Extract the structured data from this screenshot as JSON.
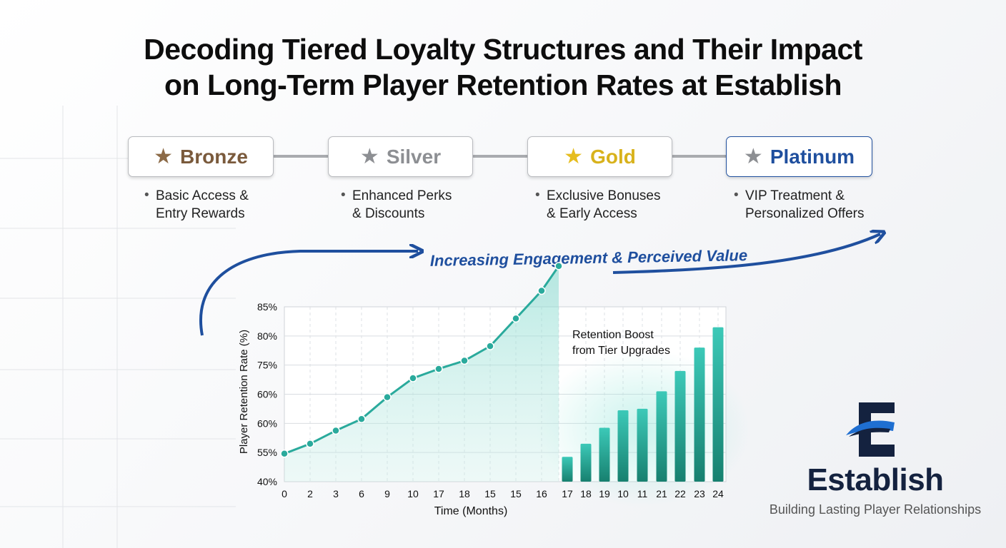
{
  "title": {
    "line1": "Decoding Tiered Loyalty Structures and Their Impact",
    "line2": "on Long-Term Player Retention Rates at Establish"
  },
  "tiers": [
    {
      "name": "Bronze",
      "desc1": "Basic Access &",
      "desc2": "Entry Rewards",
      "color": "#7a5a3c",
      "star_color": "#8c6a47",
      "border": "#b9bbbf"
    },
    {
      "name": "Silver",
      "desc1": "Enhanced Perks",
      "desc2": "& Discounts",
      "color": "#8d8f93",
      "star_color": "#8d8f93",
      "border": "#c2c4c8"
    },
    {
      "name": "Gold",
      "desc1": "Exclusive Bonuses",
      "desc2": "& Early Access",
      "color": "#d8b21c",
      "star_color": "#e6bd1e",
      "border": "#b9bbbf"
    },
    {
      "name": "Platinum",
      "desc1": "VIP Treatment &",
      "desc2": "Personalized Offers",
      "color": "#1f4f9e",
      "star_color": "#8d8f93",
      "border": "#1f4f9e"
    }
  ],
  "arrow_label": "Increasing Engagement & Perceived Value",
  "brand": {
    "name": "Establish",
    "tagline": "Building Lasting Player Relationships",
    "logo_icon": "establish-e-logo-icon"
  },
  "chart_data": {
    "type": "line+bar",
    "xlabel": "Time (Months)",
    "ylabel": "Player Retention Rate (%)",
    "y_tick_labels": [
      "40%",
      "55%",
      "60%",
      "60%",
      "75%",
      "80%",
      "85%"
    ],
    "annotation_line1": "Retention Boost",
    "annotation_line2": "from Tier Upgrades",
    "line_series": {
      "x_labels": [
        "0",
        "2",
        "3",
        "6",
        "9",
        "10",
        "17",
        "18",
        "15",
        "15",
        "16",
        ""
      ],
      "values": [
        0.96,
        1.3,
        1.75,
        2.15,
        2.9,
        3.55,
        3.87,
        4.15,
        4.65,
        5.6,
        6.55,
        7.4
      ]
    },
    "bar_series": {
      "x_labels": [
        "17",
        "18",
        "19",
        "10",
        "11",
        "21",
        "22",
        "23",
        "24"
      ],
      "values": [
        0.85,
        1.3,
        1.85,
        2.45,
        2.5,
        3.1,
        3.8,
        4.6,
        5.3
      ]
    },
    "y_scale_note": "values in tick-index units: 0=40%, 1=55%, 2=60%, 3=60%, 4=75%, 5=80%, 6=85%",
    "ylim": [
      0,
      6
    ],
    "grid": true,
    "colors": {
      "line": "#2aaa9c",
      "bar_top": "#3cc9b8",
      "bar_bottom": "#17806f",
      "axis_text": "#111"
    }
  }
}
